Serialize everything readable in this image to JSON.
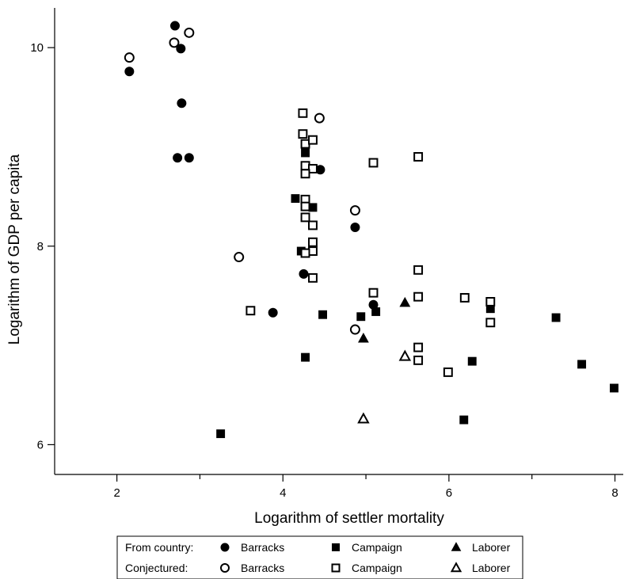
{
  "chart_data": {
    "type": "scatter",
    "xlabel": "Logarithm of settler mortality",
    "ylabel": "Logarithm of GDP per capita",
    "xlim": [
      1.25,
      8.1
    ],
    "ylim": [
      5.7,
      10.4
    ],
    "xticks": [
      2,
      4,
      6,
      8
    ],
    "xminor": [
      3,
      5,
      7
    ],
    "yticks": [
      6,
      8,
      10
    ],
    "grid": false,
    "legend": {
      "placement": "bottom",
      "rows": [
        {
          "label": "From country:",
          "entries": [
            {
              "name": "Barracks",
              "marker": "circle",
              "filled": true
            },
            {
              "name": "Campaign",
              "marker": "square",
              "filled": true
            },
            {
              "name": "Laborer",
              "marker": "triangle",
              "filled": true
            }
          ]
        },
        {
          "label": "Conjectured:",
          "entries": [
            {
              "name": "Barracks",
              "marker": "circle",
              "filled": false
            },
            {
              "name": "Campaign",
              "marker": "square",
              "filled": false
            },
            {
              "name": "Laborer",
              "marker": "triangle",
              "filled": false
            }
          ]
        }
      ]
    },
    "series": [
      {
        "marker": "circle",
        "filled": true,
        "points": [
          [
            2.15,
            9.76
          ],
          [
            2.7,
            10.22
          ],
          [
            2.77,
            9.99
          ],
          [
            2.78,
            9.44
          ],
          [
            2.73,
            8.89
          ],
          [
            2.87,
            8.89
          ],
          [
            3.88,
            7.33
          ],
          [
            4.25,
            7.72
          ],
          [
            4.45,
            8.77
          ],
          [
            4.87,
            8.19
          ],
          [
            5.09,
            7.41
          ]
        ]
      },
      {
        "marker": "circle",
        "filled": false,
        "points": [
          [
            2.15,
            9.9
          ],
          [
            2.69,
            10.05
          ],
          [
            2.87,
            10.15
          ],
          [
            3.47,
            7.89
          ],
          [
            4.44,
            9.29
          ],
          [
            4.87,
            8.36
          ],
          [
            4.87,
            7.16
          ]
        ]
      },
      {
        "marker": "square",
        "filled": true,
        "points": [
          [
            3.25,
            6.11
          ],
          [
            4.15,
            8.48
          ],
          [
            4.22,
            7.95
          ],
          [
            4.27,
            8.94
          ],
          [
            4.27,
            6.88
          ],
          [
            4.36,
            8.39
          ],
          [
            4.48,
            7.31
          ],
          [
            4.94,
            7.29
          ],
          [
            5.12,
            7.34
          ],
          [
            6.18,
            6.25
          ],
          [
            6.28,
            6.84
          ],
          [
            6.5,
            7.37
          ],
          [
            7.29,
            7.28
          ],
          [
            7.6,
            6.81
          ],
          [
            7.99,
            6.57
          ]
        ]
      },
      {
        "marker": "square",
        "filled": false,
        "points": [
          [
            3.61,
            7.35
          ],
          [
            4.24,
            9.34
          ],
          [
            4.24,
            9.13
          ],
          [
            4.27,
            9.03
          ],
          [
            4.36,
            9.07
          ],
          [
            4.27,
            8.81
          ],
          [
            4.36,
            8.78
          ],
          [
            4.27,
            8.73
          ],
          [
            4.27,
            8.47
          ],
          [
            4.27,
            8.4
          ],
          [
            4.27,
            8.29
          ],
          [
            4.36,
            8.21
          ],
          [
            4.36,
            8.04
          ],
          [
            4.36,
            7.95
          ],
          [
            4.27,
            7.93
          ],
          [
            4.36,
            7.68
          ],
          [
            5.09,
            8.84
          ],
          [
            5.09,
            7.53
          ],
          [
            5.63,
            8.9
          ],
          [
            5.63,
            7.76
          ],
          [
            5.63,
            7.49
          ],
          [
            5.63,
            6.98
          ],
          [
            5.63,
            6.85
          ],
          [
            5.99,
            6.73
          ],
          [
            6.19,
            7.48
          ],
          [
            6.5,
            7.44
          ],
          [
            6.5,
            7.23
          ]
        ]
      },
      {
        "marker": "triangle",
        "filled": true,
        "points": [
          [
            5.47,
            7.43
          ],
          [
            4.97,
            7.07
          ]
        ]
      },
      {
        "marker": "triangle",
        "filled": false,
        "points": [
          [
            5.47,
            6.89
          ],
          [
            4.97,
            6.26
          ]
        ]
      }
    ]
  },
  "colors": {
    "ink": "#000000",
    "background": "#ffffff"
  }
}
